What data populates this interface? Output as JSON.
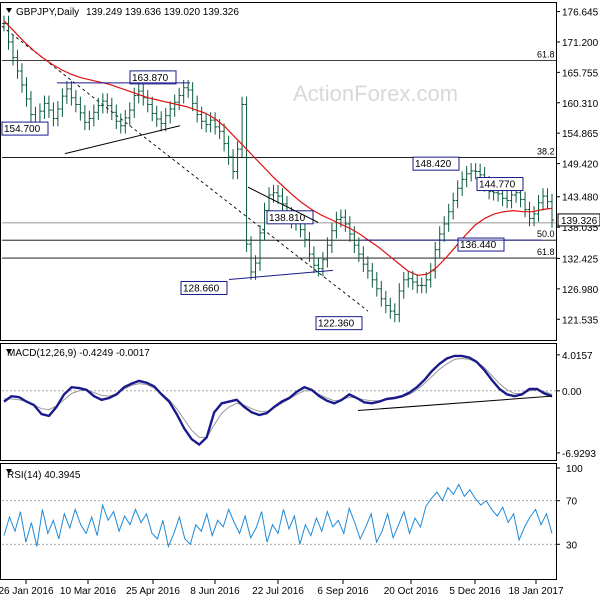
{
  "header": {
    "symbol": "GBPJPY,Daily",
    "ohlc": "139.249 139.636 139.020 139.326",
    "watermark": "ActionForex.com"
  },
  "colors": {
    "price_bars": "#0a5a3a",
    "moving_average": "#e01010",
    "macd_line": "#1a1a8c",
    "signal_line": "#999999",
    "rsi_line": "#1f8ad8",
    "box_border": "#1a1a8c",
    "trendline": "#000000"
  },
  "chart_data": [
    {
      "type": "line",
      "panel": "price",
      "title": "GBPJPY,Daily",
      "ylim": [
        118.0,
        178.0
      ],
      "y_ticks": [
        "176.645",
        "171.200",
        "165.755",
        "160.310",
        "154.865",
        "149.420",
        "143.480",
        "138.035",
        "132.425",
        "126.980",
        "121.535"
      ],
      "current_price_label": "139.326",
      "x_ticks": [
        "26 Jan 2016",
        "10 Mar 2016",
        "25 Apr 2016",
        "8 Jun 2016",
        "22 Jul 2016",
        "6 Sep 2016",
        "20 Oct 2016",
        "5 Dec 2016",
        "18 Jan 2017"
      ],
      "series": [
        {
          "values": [
            174.5,
            171.2,
            168.4,
            166.0,
            163.5,
            161.0,
            158.2,
            156.5,
            158.8,
            160.2,
            159.0,
            157.5,
            159.2,
            161.5,
            162.8,
            161.2,
            160.0,
            158.5,
            156.8,
            157.5,
            158.6,
            159.8,
            160.6,
            159.8,
            158.6,
            157.0,
            156.2,
            157.6,
            159.0,
            161.6,
            162.4,
            161.2,
            160.0,
            158.4,
            157.4,
            156.6,
            158.0,
            159.2,
            160.4,
            161.6,
            163.0,
            162.6,
            160.2,
            158.2,
            157.0,
            156.4,
            157.2,
            156.0,
            155.2,
            153.0,
            150.6,
            148.0,
            152.0,
            160.0,
            135.0,
            130.0,
            131.6,
            137.0,
            141.0,
            143.8,
            144.2,
            143.6,
            142.2,
            140.2,
            139.2,
            138.8,
            137.6,
            135.8,
            133.2,
            131.2,
            130.6,
            132.2,
            134.8,
            137.4,
            139.4,
            139.8,
            138.6,
            136.8,
            134.8,
            133.2,
            131.4,
            130.2,
            128.6,
            127.0,
            125.2,
            124.0,
            123.0,
            122.4,
            126.6,
            128.6,
            128.8,
            128.2,
            127.6,
            127.6,
            128.6,
            130.2,
            134.0,
            136.8,
            138.6,
            140.8,
            142.8,
            145.0,
            146.6,
            147.6,
            148.1,
            148.0,
            147.4,
            145.8,
            144.4,
            144.2,
            144.0,
            143.2,
            142.8,
            143.8,
            144.2,
            143.0,
            141.2,
            139.6,
            140.4,
            142.4,
            143.6,
            142.6,
            139.3
          ]
        },
        {
          "values": [
            175.0,
            173.2,
            171.4,
            169.8,
            168.4,
            167.2,
            166.2,
            165.4,
            164.8,
            164.4,
            164.0,
            163.6,
            163.0,
            162.4,
            161.8,
            161.2,
            160.8,
            160.4,
            160.0,
            159.6,
            159.0,
            158.4,
            157.4,
            156.0,
            154.2,
            152.4,
            150.6,
            148.8,
            147.0,
            145.4,
            143.8,
            142.4,
            141.2,
            140.2,
            139.4,
            138.6,
            137.8,
            136.8,
            135.6,
            134.4,
            133.0,
            131.6,
            130.2,
            129.4,
            129.6,
            130.8,
            132.6,
            134.6,
            136.6,
            138.4,
            139.6,
            140.4,
            140.8,
            141.0,
            140.8,
            140.8,
            141.2,
            141.4
          ]
        },
        {
          "values": [
            174.0,
            171.0,
            168.0,
            165.0,
            162.0,
            159.0,
            156.0,
            153.0,
            150.0,
            147.0,
            144.0,
            141.0,
            138.0,
            135.0,
            132.0,
            129.0,
            126.0,
            123.0
          ]
        }
      ],
      "annotations": [
        {
          "label": "163.870",
          "value": 163.87
        },
        {
          "label": "154.700",
          "value": 154.7
        },
        {
          "label": "148.420",
          "value": 148.42
        },
        {
          "label": "144.770",
          "value": 144.77
        },
        {
          "label": "138.810",
          "value": 138.81
        },
        {
          "label": "136.440",
          "value": 136.44
        },
        {
          "label": "128.660",
          "value": 128.66
        },
        {
          "label": "122.360",
          "value": 122.36
        }
      ],
      "fib_levels": [
        {
          "label": "61.8",
          "value": 167.9
        },
        {
          "label": "38.2",
          "value": 150.5
        },
        {
          "label": "50.0",
          "value": 135.7
        },
        {
          "label": "61.8",
          "value": 132.5
        }
      ],
      "horizontal_levels": [
        138.8
      ]
    },
    {
      "type": "line",
      "panel": "macd",
      "title": "MACD(12,26,9) -0.4249 -0.0017",
      "ylim": [
        -7.5,
        5.0
      ],
      "y_ticks": [
        "4.0157",
        "0.00",
        "-6.9293"
      ],
      "series": [
        {
          "values": [
            -1.2,
            -0.6,
            -0.7,
            -1.2,
            -1.6,
            -2.6,
            -2.8,
            -1.8,
            -0.4,
            0.4,
            0.3,
            0.1,
            -0.6,
            -1.0,
            -0.8,
            -0.4,
            0.4,
            0.8,
            1.1,
            0.9,
            0.5,
            -0.4,
            -1.2,
            -2.6,
            -4.2,
            -5.4,
            -6.0,
            -5.2,
            -2.4,
            -1.4,
            -1.2,
            -1.0,
            -1.8,
            -2.4,
            -2.7,
            -2.5,
            -1.8,
            -1.2,
            -0.8,
            -0.1,
            0.4,
            0.1,
            -0.6,
            -1.1,
            -1.4,
            -1.0,
            -0.4,
            -0.8,
            -1.3,
            -1.4,
            -1.2,
            -0.9,
            -0.8,
            -0.6,
            -0.2,
            0.4,
            1.2,
            2.2,
            3.0,
            3.6,
            3.9,
            3.9,
            3.7,
            3.2,
            2.3,
            1.2,
            0.2,
            -0.4,
            -0.6,
            -0.4,
            0.2,
            0.2,
            -0.3,
            -0.6
          ]
        },
        {
          "values": [
            -0.9,
            -0.9,
            -1.0,
            -1.2,
            -1.6,
            -2.0,
            -2.1,
            -1.7,
            -1.0,
            -0.3,
            0.0,
            0.1,
            -0.2,
            -0.5,
            -0.6,
            -0.3,
            0.2,
            0.6,
            0.8,
            0.7,
            0.3,
            -0.3,
            -1.0,
            -2.0,
            -3.2,
            -4.4,
            -5.2,
            -5.2,
            -3.8,
            -2.5,
            -1.8,
            -1.4,
            -1.6,
            -2.0,
            -2.3,
            -2.3,
            -1.9,
            -1.4,
            -0.9,
            -0.4,
            0.0,
            0.0,
            -0.4,
            -0.8,
            -1.1,
            -1.0,
            -0.7,
            -0.8,
            -1.0,
            -1.1,
            -1.1,
            -1.0,
            -0.9,
            -0.7,
            -0.4,
            0.1,
            0.8,
            1.6,
            2.4,
            3.0,
            3.5,
            3.6,
            3.5,
            3.2,
            2.6,
            1.7,
            0.8,
            0.1,
            -0.3,
            -0.3,
            0.0,
            0.1,
            -0.1,
            -0.4
          ]
        }
      ]
    },
    {
      "type": "line",
      "panel": "rsi",
      "title": "RSI(14) 40.3945",
      "ylim": [
        0,
        100
      ],
      "y_ticks": [
        "100",
        "70",
        "30"
      ],
      "reference_levels": [
        70,
        30
      ],
      "series": [
        {
          "values": [
            38,
            55,
            42,
            60,
            32,
            50,
            28,
            62,
            40,
            52,
            35,
            58,
            45,
            62,
            48,
            40,
            55,
            38,
            66,
            52,
            60,
            42,
            56,
            48,
            62,
            50,
            58,
            40,
            35,
            52,
            28,
            40,
            55,
            35,
            30,
            48,
            42,
            58,
            38,
            52,
            46,
            62,
            50,
            40,
            56,
            36,
            45,
            60,
            32,
            48,
            40,
            62,
            44,
            56,
            30,
            48,
            38,
            54,
            42,
            60,
            46,
            52,
            40,
            63,
            50,
            35,
            46,
            58,
            32,
            42,
            58,
            36,
            48,
            60,
            40,
            54,
            46,
            65,
            72,
            78,
            70,
            82,
            76,
            85,
            74,
            80,
            72,
            66,
            70,
            62,
            56,
            64,
            50,
            58,
            34,
            46,
            55,
            62,
            48,
            58,
            40
          ]
        }
      ]
    }
  ]
}
